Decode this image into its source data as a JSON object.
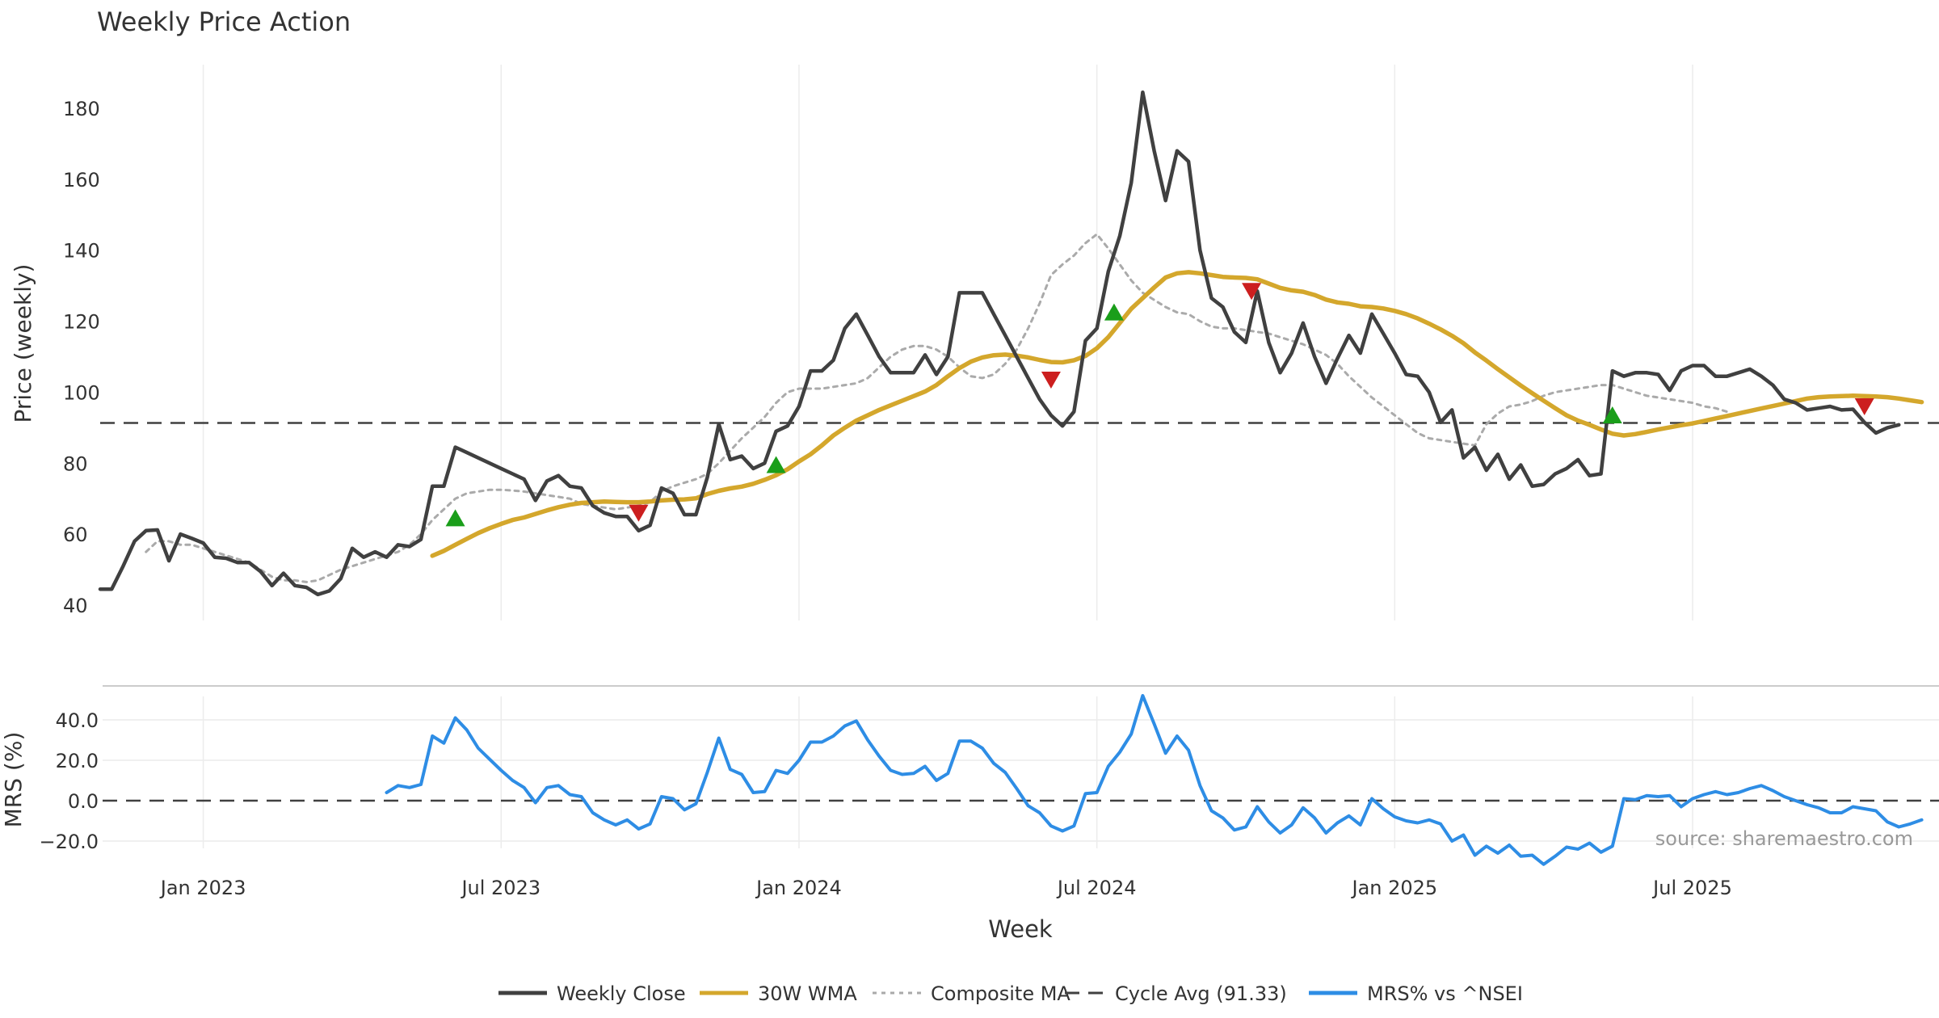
{
  "chart_data": [
    {
      "type": "line",
      "title": "Weekly Price Action",
      "xlabel": "",
      "ylabel": "Price (weekly)",
      "ylim": [
        38,
        192
      ],
      "yticks": [
        40,
        60,
        80,
        100,
        120,
        140,
        160,
        180
      ],
      "x_ticks": [
        {
          "label": "Jan 2023",
          "week": 9
        },
        {
          "label": "Jul 2023",
          "week": 35
        },
        {
          "label": "Jan 2024",
          "week": 61
        },
        {
          "label": "Jul 2024",
          "week": 87
        },
        {
          "label": "Jan 2025",
          "week": 113
        },
        {
          "label": "Jul 2025",
          "week": 139
        }
      ],
      "xlim": [
        0,
        161
      ],
      "grid": "vertical",
      "series": [
        {
          "name": "Weekly Close",
          "color": "#404040",
          "style": "solid",
          "start_week": 0,
          "values": [
            44.5,
            44.5,
            51,
            58,
            61,
            61.2,
            52.5,
            60,
            58.8,
            57.5,
            53.5,
            53.2,
            52,
            52,
            49.5,
            45.5,
            49,
            45.5,
            45,
            43,
            44,
            47.5,
            56,
            53.5,
            55,
            53.5,
            57,
            56.5,
            58.5,
            73.5,
            73.5,
            84.5,
            83,
            81.5,
            80,
            78.5,
            77,
            75.5,
            69.5,
            75,
            76.5,
            73.5,
            73,
            68,
            66,
            65,
            65,
            61,
            62.5,
            73,
            71.5,
            65.5,
            65.5,
            76,
            91,
            81,
            82,
            78.5,
            80,
            89,
            90.5,
            96,
            106,
            106,
            109,
            118,
            122,
            116,
            110,
            105.5,
            105.5,
            105.5,
            110.5,
            105,
            110,
            128,
            128,
            128,
            122,
            116,
            110,
            104,
            98,
            93.5,
            90.5,
            94.5,
            114.5,
            118,
            134,
            144,
            159,
            184.5,
            168,
            154,
            168,
            165,
            140,
            126.5,
            124,
            117,
            114,
            128.5,
            114,
            105.5,
            111,
            119.5,
            110,
            102.5,
            109.5,
            116,
            111,
            122,
            116.5,
            111,
            105,
            104.5,
            100,
            91.5,
            95,
            81.5,
            84.5,
            78,
            82.5,
            75.5,
            79.5,
            73.5,
            74,
            77,
            78.5,
            81,
            76.5,
            77,
            106,
            104.5,
            105.5,
            105.5,
            105,
            100.5,
            106,
            107.5,
            107.5,
            104.5,
            104.5,
            105.5,
            106.5,
            104.5,
            102,
            98,
            97,
            95,
            95.5,
            96,
            95,
            95.2,
            91.5,
            88.5,
            90,
            90.8
          ]
        },
        {
          "name": "30W WMA",
          "color": "#D4A72C",
          "style": "solid",
          "start_week": 29,
          "values": [
            53.9,
            55.3,
            57,
            58.7,
            60.3,
            61.7,
            62.9,
            64,
            64.7,
            65.7,
            66.7,
            67.6,
            68.3,
            68.8,
            69,
            69.2,
            69.1,
            69,
            69,
            69.2,
            69.5,
            69.7,
            69.8,
            70.1,
            71.3,
            72.2,
            72.9,
            73.4,
            74.2,
            75.3,
            76.6,
            78.3,
            80.5,
            82.5,
            85,
            87.8,
            90,
            92,
            93.5,
            95,
            96.3,
            97.6,
            98.9,
            100.2,
            102,
            104.5,
            106.8,
            108.6,
            109.8,
            110.4,
            110.6,
            110.3,
            109.8,
            109.1,
            108.5,
            108.4,
            109,
            110.2,
            112.4,
            115.5,
            119.5,
            123.5,
            126.5,
            129.5,
            132.3,
            133.5,
            133.8,
            133.5,
            133,
            132.5,
            132.3,
            132.2,
            131.8,
            130.6,
            129.4,
            128.7,
            128.3,
            127.4,
            126.1,
            125.3,
            124.9,
            124.2,
            124,
            123.6,
            122.9,
            122,
            120.8,
            119.3,
            117.7,
            115.9,
            113.8,
            111.2,
            108.9,
            106.5,
            104.2,
            101.9,
            99.7,
            97.6,
            95.5,
            93.5,
            92,
            90.8,
            89.5,
            88.3,
            87.8,
            88.2,
            88.8,
            89.5,
            90.1,
            90.7,
            91.2,
            91.9,
            92.6,
            93.3,
            94,
            94.7,
            95.4,
            96.1,
            96.8,
            97.5,
            98.2,
            98.6,
            98.8,
            98.9,
            99,
            98.9,
            98.8,
            98.6,
            98.2,
            97.7,
            97.2
          ]
        },
        {
          "name": "Composite MA",
          "color": "#AAAAAA",
          "style": "dotted",
          "start_week": 4,
          "values": [
            55,
            58,
            58,
            57,
            57,
            56,
            55,
            54,
            53,
            52,
            50,
            48,
            47,
            47,
            46.5,
            47,
            48.5,
            50,
            51,
            52,
            53,
            54,
            55,
            57,
            60,
            64,
            67,
            70,
            71.5,
            72,
            72.5,
            72.5,
            72.3,
            72,
            71.5,
            71,
            70.5,
            70,
            68.5,
            68,
            67.5,
            67,
            67.5,
            68,
            69,
            72,
            73.5,
            74.5,
            75.5,
            77,
            80,
            83.5,
            87,
            90,
            93,
            97,
            100,
            101,
            101,
            101,
            101.5,
            102,
            102.5,
            104,
            107,
            110,
            112,
            113,
            113,
            112,
            110,
            107,
            104.5,
            104,
            105,
            108,
            112,
            118,
            125,
            133,
            136,
            138.5,
            142,
            144.5,
            140.5,
            136,
            131.5,
            128,
            126,
            124,
            122.5,
            122,
            120,
            118.5,
            118,
            118,
            117.5,
            117,
            116.5,
            115.5,
            114.5,
            113.5,
            112,
            110.5,
            108,
            104.5,
            101.5,
            98.5,
            96,
            93.5,
            91,
            88.5,
            87,
            86.5,
            86,
            85.5,
            85,
            91,
            94,
            96,
            96.5,
            97.5,
            99,
            100,
            100.5,
            101,
            101.5,
            102,
            102,
            101,
            100,
            99,
            98.5,
            98,
            97.5,
            97,
            96,
            95.5,
            94.5
          ]
        },
        {
          "name": "Cycle Avg (91.33)",
          "color": "#404040",
          "style": "dashed",
          "value": 91.33
        }
      ],
      "markers": [
        {
          "type": "buy",
          "week": 31,
          "value": 64.5,
          "color": "#1A9E1A"
        },
        {
          "type": "sell",
          "week": 47,
          "value": 66,
          "color": "#CC1F1F"
        },
        {
          "type": "buy",
          "week": 59,
          "value": 79.5,
          "color": "#1A9E1A"
        },
        {
          "type": "sell",
          "week": 83,
          "value": 103.5,
          "color": "#CC1F1F"
        },
        {
          "type": "buy",
          "week": 88.5,
          "value": 122.5,
          "color": "#1A9E1A"
        },
        {
          "type": "sell",
          "week": 100.5,
          "value": 128.5,
          "color": "#CC1F1F"
        },
        {
          "type": "buy",
          "week": 132,
          "value": 93.5,
          "color": "#1A9E1A"
        },
        {
          "type": "sell",
          "week": 154,
          "value": 96,
          "color": "#CC1F1F"
        }
      ]
    },
    {
      "type": "line",
      "title": "",
      "xlabel": "Week",
      "ylabel": "MRS (%)",
      "ylim": [
        -25,
        55
      ],
      "yticks": [
        40,
        20,
        0,
        -20
      ],
      "ytick_labels": [
        "40.0",
        "20.0",
        "0.0",
        "−20.0"
      ],
      "zero_line": "dashed",
      "annotation": "source: sharemaestro.com",
      "series": [
        {
          "name": "MRS% vs ^NSEI",
          "color": "#2E8DE5",
          "style": "solid",
          "start_week": 25,
          "values": [
            4,
            7.5,
            6.5,
            8,
            32,
            28.5,
            41,
            35,
            26,
            20.5,
            15,
            10,
            6.5,
            -1,
            6.5,
            7.5,
            3,
            2,
            -6,
            -9.5,
            -12,
            -9.5,
            -14,
            -11.5,
            2,
            1,
            -4.5,
            -1.5,
            14,
            31,
            15.5,
            13,
            4,
            4.5,
            15,
            13.5,
            20,
            29,
            29,
            32,
            37,
            39.5,
            30,
            22,
            15,
            13,
            13.5,
            17,
            10,
            13.5,
            29.5,
            29.5,
            26,
            18.5,
            14,
            6,
            -2.5,
            -6,
            -12.5,
            -15,
            -12.5,
            3.5,
            4,
            17,
            24,
            33,
            52,
            38,
            23.5,
            32,
            25,
            7.5,
            -5,
            -8.5,
            -14.5,
            -13,
            -3,
            -10.5,
            -16,
            -12,
            -3.5,
            -8.5,
            -16,
            -11,
            -7.5,
            -12,
            1,
            -4,
            -8,
            -10,
            -11,
            -9.5,
            -11.5,
            -20,
            -17,
            -27,
            -22.5,
            -26,
            -22,
            -27.5,
            -27,
            -31.5,
            -27.5,
            -23,
            -24,
            -21,
            -25.5,
            -22.5,
            1,
            0.5,
            2.5,
            2,
            2.5,
            -3,
            1,
            3,
            4.5,
            3,
            4,
            6,
            7.5,
            5,
            2,
            0,
            -2,
            -3.5,
            -6,
            -6,
            -3,
            -4,
            -5,
            -10.5,
            -13,
            -11.5,
            -9.5
          ]
        }
      ]
    }
  ],
  "legend": {
    "placement": "bottom-center",
    "items": [
      {
        "label": "Weekly Close",
        "color": "#404040",
        "style": "solid"
      },
      {
        "label": "30W WMA",
        "color": "#D4A72C",
        "style": "solid"
      },
      {
        "label": "Composite MA",
        "color": "#AAAAAA",
        "style": "dotted"
      },
      {
        "label": "Cycle Avg (91.33)",
        "color": "#404040",
        "style": "dashed"
      },
      {
        "label": "MRS% vs ^NSEI",
        "color": "#2E8DE5",
        "style": "solid"
      }
    ]
  }
}
